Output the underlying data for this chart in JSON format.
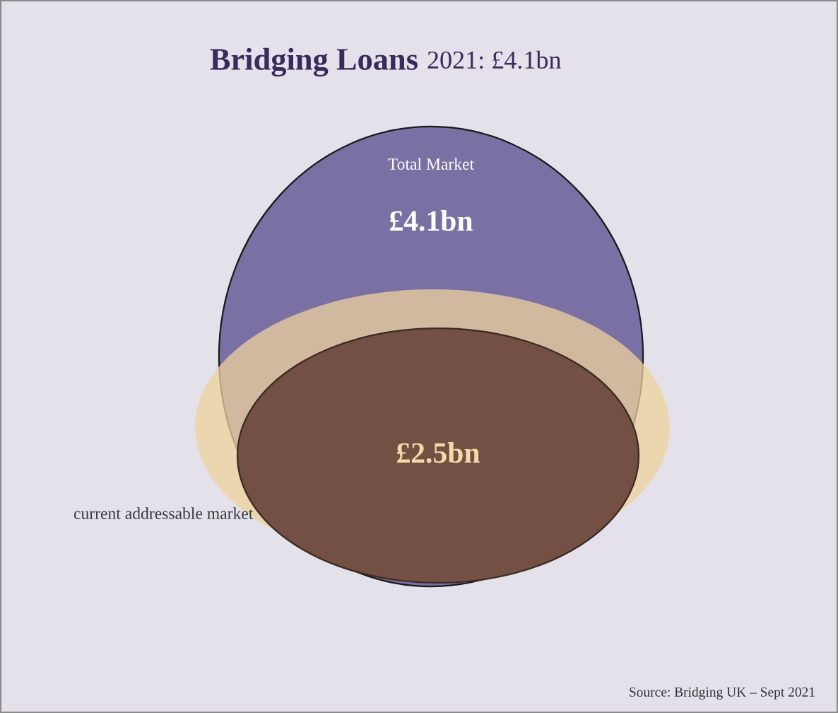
{
  "chart_data": {
    "type": "other",
    "title": "Bridging Loans",
    "subtitle": "2021: £4.1bn",
    "categories": [
      "Total Market",
      "current addressable market"
    ],
    "values": [
      4.1,
      2.5
    ],
    "value_labels": [
      "£4.1bn",
      "£2.5bn"
    ],
    "colors": [
      "#7a70a4",
      "#744f43"
    ],
    "annotations": [
      "Source: Bridging UK – Sept 2021"
    ]
  }
}
